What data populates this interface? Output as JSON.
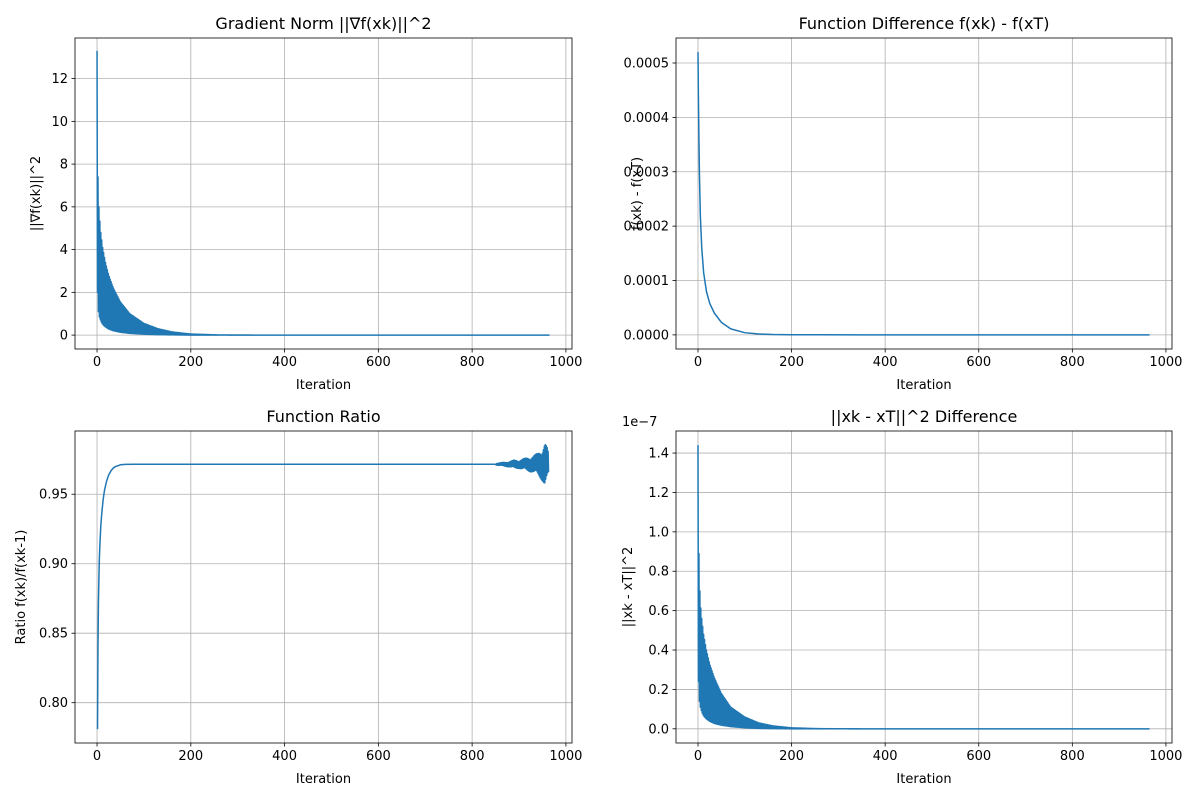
{
  "chart_data": [
    {
      "type": "line",
      "title": "Gradient Norm ||∇f(xk)||^2",
      "xlabel": "Iteration",
      "ylabel": "||∇f(xk)||^2",
      "xlim": [
        -47,
        1013
      ],
      "ylim": [
        -0.65,
        13.9
      ],
      "x_ticks": [
        0,
        200,
        400,
        600,
        800,
        1000
      ],
      "x_tick_labels": [
        "0",
        "200",
        "400",
        "600",
        "800",
        "1000"
      ],
      "y_ticks": [
        0,
        2,
        4,
        6,
        8,
        10,
        12
      ],
      "y_tick_labels": [
        "0",
        "2",
        "4",
        "6",
        "8",
        "10",
        "12"
      ],
      "offset_text": "",
      "grid": true,
      "series": [
        {
          "color": "#1f77b4",
          "oscillating_envelope": {
            "upper": {
              "x": [
                0,
                1,
                2,
                3,
                5,
                8,
                12,
                18,
                25,
                35,
                50,
                70,
                100,
                130,
                160,
                200,
                260,
                350,
                965
              ],
              "y": [
                13.3,
                9.3,
                7.4,
                6.4,
                5.6,
                4.8,
                4.1,
                3.4,
                2.8,
                2.2,
                1.55,
                1.0,
                0.55,
                0.3,
                0.15,
                0.05,
                0.01,
                0.0,
                0.0
              ]
            },
            "lower": {
              "x": [
                0,
                1,
                2,
                3,
                5,
                8,
                12,
                18,
                25,
                35,
                50,
                70,
                100,
                130,
                160,
                200,
                260,
                350,
                965
              ],
              "y": [
                5.0,
                2.0,
                1.4,
                1.1,
                0.85,
                0.65,
                0.5,
                0.38,
                0.28,
                0.2,
                0.13,
                0.08,
                0.04,
                0.02,
                0.01,
                0.0,
                0.0,
                0.0,
                0.0
              ]
            }
          }
        }
      ]
    },
    {
      "type": "line",
      "title": "Function Difference f(xk) - f(xT)",
      "xlabel": "Iteration",
      "ylabel": "f(xk) - f(xT)",
      "xlim": [
        -47,
        1013
      ],
      "ylim": [
        -2.6e-05,
        0.000546
      ],
      "x_ticks": [
        0,
        200,
        400,
        600,
        800,
        1000
      ],
      "x_tick_labels": [
        "0",
        "200",
        "400",
        "600",
        "800",
        "1000"
      ],
      "y_ticks": [
        0,
        0.0001,
        0.0002,
        0.0003,
        0.0004,
        0.0005
      ],
      "y_tick_labels": [
        "0.0000",
        "0.0001",
        "0.0002",
        "0.0003",
        "0.0004",
        "0.0005"
      ],
      "offset_text": "",
      "grid": true,
      "series": [
        {
          "color": "#1f77b4",
          "x": [
            0,
            1,
            2,
            3,
            5,
            8,
            12,
            18,
            25,
            35,
            50,
            70,
            100,
            130,
            160,
            200,
            260,
            350,
            500,
            700,
            965
          ],
          "y": [
            0.00052,
            0.00043,
            0.00036,
            0.0003,
            0.00022,
            0.00016,
            0.000115,
            8e-05,
            5.8e-05,
            4e-05,
            2.3e-05,
            1.1e-05,
            4e-06,
            1.5e-06,
            6e-07,
            2e-07,
            1e-07,
            0.0,
            0.0,
            0.0,
            0.0
          ]
        }
      ]
    },
    {
      "type": "line",
      "title": "Function Ratio",
      "xlabel": "Iteration",
      "ylabel": "Ratio f(xk)/f(xk-1)",
      "xlim": [
        -47,
        1013
      ],
      "ylim": [
        0.771,
        0.9955
      ],
      "x_ticks": [
        0,
        200,
        400,
        600,
        800,
        1000
      ],
      "x_tick_labels": [
        "0",
        "200",
        "400",
        "600",
        "800",
        "1000"
      ],
      "y_ticks": [
        0.8,
        0.85,
        0.9,
        0.95
      ],
      "y_tick_labels": [
        "0.80",
        "0.85",
        "0.90",
        "0.95"
      ],
      "offset_text": "",
      "grid": true,
      "series": [
        {
          "color": "#1f77b4",
          "x": [
            1,
            2,
            3,
            4,
            5,
            6,
            8,
            10,
            13,
            16,
            20,
            25,
            30,
            35,
            40,
            50,
            60,
            80,
            100,
            200,
            400,
            600,
            800,
            850
          ],
          "y": [
            0.781,
            0.84,
            0.872,
            0.89,
            0.904,
            0.913,
            0.927,
            0.936,
            0.946,
            0.953,
            0.959,
            0.964,
            0.967,
            0.969,
            0.97,
            0.9712,
            0.9715,
            0.9716,
            0.9716,
            0.9716,
            0.9716,
            0.9716,
            0.9716,
            0.9716
          ],
          "noisy_tail": {
            "x": [
              850,
              860,
              870,
              880,
              890,
              900,
              910,
              920,
              930,
              940,
              950,
              955,
              960,
              963
            ],
            "amplitude": [
              0.0005,
              0.001,
              0.0015,
              0.002,
              0.003,
              0.003,
              0.004,
              0.005,
              0.006,
              0.008,
              0.012,
              0.016,
              0.012,
              0.008
            ]
          }
        }
      ]
    },
    {
      "type": "line",
      "title": "||xk - xT||^2 Difference",
      "xlabel": "Iteration",
      "ylabel": "||xk - xT||^2",
      "xlim": [
        -47,
        1013
      ],
      "ylim": [
        -7.2e-09,
        1.512e-07
      ],
      "x_ticks": [
        0,
        200,
        400,
        600,
        800,
        1000
      ],
      "x_tick_labels": [
        "0",
        "200",
        "400",
        "600",
        "800",
        "1000"
      ],
      "y_ticks": [
        0,
        2e-08,
        4e-08,
        6e-08,
        8e-08,
        1e-07,
        1.2e-07,
        1.4e-07
      ],
      "y_tick_labels": [
        "0.0",
        "0.2",
        "0.4",
        "0.6",
        "0.8",
        "1.0",
        "1.2",
        "1.4"
      ],
      "offset_text": "1e−7",
      "grid": true,
      "series": [
        {
          "color": "#1f77b4",
          "oscillating_envelope": {
            "upper": {
              "x": [
                0,
                1,
                2,
                3,
                5,
                8,
                12,
                18,
                25,
                35,
                50,
                70,
                100,
                130,
                160,
                200,
                260,
                350,
                965
              ],
              "y": [
                1.44e-07,
                1.09e-07,
                8.9e-08,
                7.6e-08,
                6.4e-08,
                5.6e-08,
                4.8e-08,
                4e-08,
                3.3e-08,
                2.6e-08,
                1.8e-08,
                1.1e-08,
                6e-09,
                3e-09,
                1.5e-09,
                5e-10,
                1e-10,
                0.0,
                0.0
              ]
            },
            "lower": {
              "x": [
                0,
                1,
                2,
                3,
                5,
                8,
                12,
                18,
                25,
                35,
                50,
                70,
                100,
                130,
                160,
                200,
                260,
                350,
                965
              ],
              "y": [
                5e-08,
                2.4e-08,
                1.8e-08,
                1.4e-08,
                1.1e-08,
                8.5e-09,
                6.5e-09,
                5e-09,
                3.8e-09,
                2.7e-09,
                1.8e-09,
                1.1e-09,
                5e-10,
                2e-10,
                1e-10,
                0.0,
                0.0,
                0.0,
                0.0
              ]
            }
          }
        }
      ]
    }
  ]
}
